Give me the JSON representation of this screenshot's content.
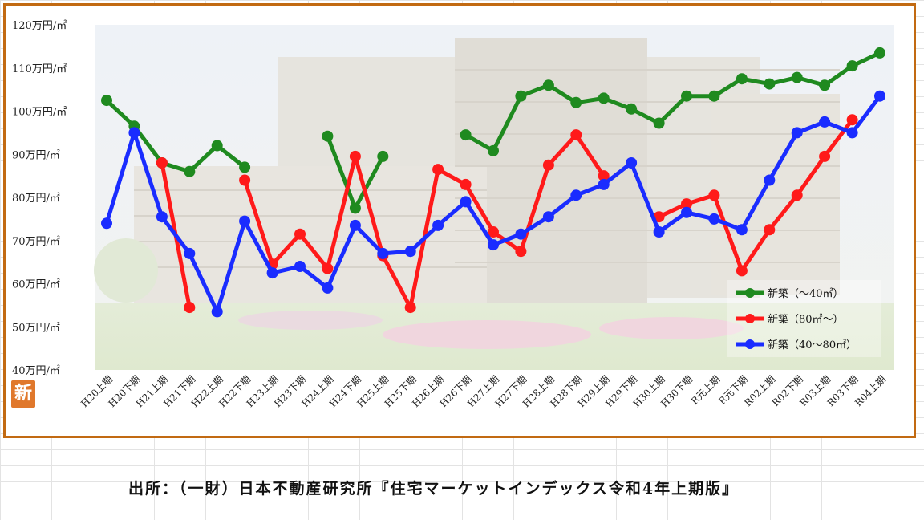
{
  "source": "出所：（一財）日本不動産研究所『住宅マーケットインデックス令和4年上期版』",
  "logo": {
    "glyph": "新",
    "icon": "shin-logo-icon"
  },
  "colors": {
    "frame": "#c26a12",
    "green": "#1f8a1f",
    "red": "#ff1a1a",
    "blue": "#1a2cff"
  },
  "chart_data": {
    "type": "line",
    "title": "",
    "xlabel": "",
    "ylabel": "",
    "ylim": [
      40,
      120
    ],
    "yticks": [
      {
        "v": 40,
        "label": "40万円/㎡"
      },
      {
        "v": 50,
        "label": "50万円/㎡"
      },
      {
        "v": 60,
        "label": "60万円/㎡"
      },
      {
        "v": 70,
        "label": "70万円/㎡"
      },
      {
        "v": 80,
        "label": "80万円/㎡"
      },
      {
        "v": 90,
        "label": "90万円/㎡"
      },
      {
        "v": 100,
        "label": "100万円/㎡"
      },
      {
        "v": 110,
        "label": "110万円/㎡"
      },
      {
        "v": 120,
        "label": "120万円/㎡"
      }
    ],
    "grid": false,
    "legend_position": "bottom-right",
    "categories": [
      "H20上期",
      "H20下期",
      "H21上期",
      "H21下期",
      "H22上期",
      "H22下期",
      "H23上期",
      "H23下期",
      "H24上期",
      "H24下期",
      "H25上期",
      "H25下期",
      "H26上期",
      "H26下期",
      "H27上期",
      "H27下期",
      "H28上期",
      "H28下期",
      "H29上期",
      "H29下期",
      "H30上期",
      "H30下期",
      "R元上期",
      "R元下期",
      "R02上期",
      "R02下期",
      "R03上期",
      "R03下期",
      "R04上期"
    ],
    "series": [
      {
        "name": "新築（～40㎡）",
        "color": "#1f8a1f",
        "values": [
          102.5,
          96.5,
          88,
          86,
          92,
          87,
          null,
          null,
          94.2,
          77.5,
          89.5,
          null,
          null,
          94.5,
          90.8,
          103.5,
          106,
          102,
          103,
          100.5,
          97.2,
          103.5,
          103.5,
          107.5,
          106.3,
          107.8,
          106,
          110.5,
          113.5
        ]
      },
      {
        "name": "新築（80㎡～）",
        "color": "#ff1a1a",
        "values": [
          null,
          null,
          88,
          54.5,
          null,
          84,
          64.5,
          71.5,
          63.5,
          89.5,
          66.5,
          54.5,
          86.5,
          83,
          72,
          67.5,
          87.5,
          94.5,
          85,
          null,
          75.5,
          78.5,
          80.5,
          63,
          72.5,
          80.5,
          89.5,
          98,
          null
        ]
      },
      {
        "name": "新築（40～80㎡）",
        "color": "#1a2cff",
        "values": [
          74,
          95,
          75.5,
          67,
          53.5,
          74.5,
          62.5,
          64,
          59,
          73.5,
          67,
          67.5,
          73.5,
          79,
          69,
          71.5,
          75.5,
          80.5,
          83,
          88,
          72,
          76.5,
          75,
          72.5,
          84,
          95,
          97.5,
          95,
          103.5
        ]
      }
    ]
  }
}
